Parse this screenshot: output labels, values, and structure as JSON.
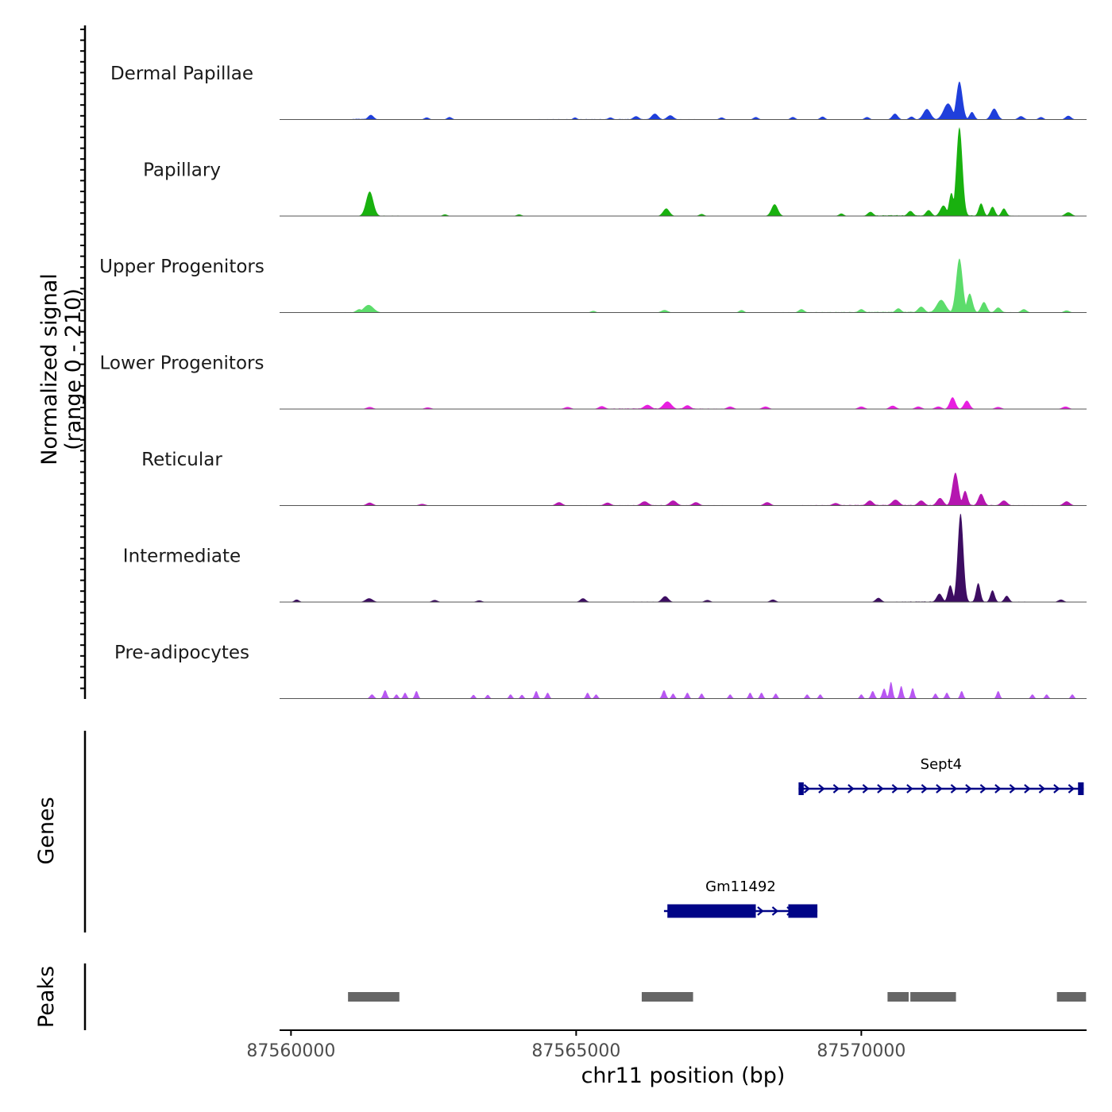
{
  "chart_data": {
    "type": "area",
    "subtype": "genome-coverage-tracks",
    "ylabel_line1": "Normalized signal",
    "ylabel_line2": "(range 0 - 210)",
    "ylim": [
      0,
      210
    ],
    "xlabel": "chr11 position (bp)",
    "xlim": [
      87559800,
      87573950
    ],
    "xticks": [
      87560000,
      87565000,
      87570000
    ],
    "xtick_labels": [
      "87560000",
      "87565000",
      "87570000"
    ],
    "tracks": [
      {
        "name": "Dermal Papillae",
        "color": "#1f3fdb",
        "background": [
          [
            87561230,
            0.1
          ],
          [
            87561430,
            0.1
          ],
          [
            87561590,
            0.03
          ],
          [
            87561845,
            0.05
          ],
          [
            87562250,
            0.02
          ],
          [
            87562720,
            0.03
          ],
          [
            87563100,
            0.04
          ],
          [
            87566100,
            0.08
          ],
          [
            87567300,
            0.05
          ],
          [
            87567600,
            0.04
          ],
          [
            87568600,
            0.05
          ],
          [
            87569000,
            0.04
          ],
          [
            87570300,
            0.03
          ]
        ],
        "peaks": [
          [
            87561400,
            11,
            70
          ],
          [
            87562380,
            5,
            60
          ],
          [
            87562780,
            6,
            60
          ],
          [
            87564980,
            5,
            50
          ],
          [
            87565600,
            5,
            60
          ],
          [
            87566050,
            8,
            70
          ],
          [
            87566380,
            14,
            80
          ],
          [
            87566650,
            10,
            80
          ],
          [
            87567550,
            5,
            60
          ],
          [
            87568150,
            6,
            60
          ],
          [
            87568800,
            6,
            60
          ],
          [
            87569320,
            7,
            60
          ],
          [
            87570100,
            6,
            60
          ],
          [
            87570590,
            14,
            70
          ],
          [
            87570880,
            7,
            60
          ],
          [
            87571150,
            25,
            90
          ],
          [
            87571520,
            38,
            110
          ],
          [
            87571720,
            90,
            75
          ],
          [
            87571940,
            18,
            60
          ],
          [
            87572330,
            26,
            80
          ],
          [
            87572800,
            8,
            70
          ],
          [
            87573150,
            6,
            60
          ],
          [
            87573630,
            9,
            70
          ]
        ]
      },
      {
        "name": "Papillary",
        "color": "#19b10f",
        "background": [
          [
            87560600,
            0.03
          ],
          [
            87561000,
            0.05
          ],
          [
            87561700,
            0.06
          ],
          [
            87564200,
            0.025
          ],
          [
            87566800,
            0.04
          ],
          [
            87568100,
            0.05
          ],
          [
            87570000,
            0.05
          ],
          [
            87570500,
            0.12
          ],
          [
            87571000,
            0.1
          ],
          [
            87572000,
            0.1
          ],
          [
            87572900,
            0.05
          ]
        ],
        "peaks": [
          [
            87561380,
            58,
            90
          ],
          [
            87562700,
            4,
            60
          ],
          [
            87564000,
            4,
            60
          ],
          [
            87566580,
            18,
            80
          ],
          [
            87567200,
            5,
            60
          ],
          [
            87568480,
            28,
            80
          ],
          [
            87569650,
            6,
            60
          ],
          [
            87570160,
            10,
            70
          ],
          [
            87570860,
            12,
            70
          ],
          [
            87571180,
            14,
            70
          ],
          [
            87571440,
            25,
            80
          ],
          [
            87571720,
            210,
            75
          ],
          [
            87571580,
            55,
            60
          ],
          [
            87572100,
            30,
            60
          ],
          [
            87572300,
            22,
            60
          ],
          [
            87572500,
            18,
            60
          ],
          [
            87573630,
            9,
            80
          ]
        ]
      },
      {
        "name": "Upper Progenitors",
        "color": "#5cdc6b",
        "background": [
          [
            87559900,
            0.03
          ],
          [
            87560300,
            0.04
          ],
          [
            87561000,
            0.06
          ],
          [
            87561700,
            0.05
          ],
          [
            87565000,
            0.03
          ],
          [
            87567000,
            0.04
          ],
          [
            87569000,
            0.06
          ],
          [
            87570500,
            0.1
          ],
          [
            87571000,
            0.12
          ],
          [
            87572000,
            0.1
          ],
          [
            87572800,
            0.05
          ],
          [
            87573600,
            0.04
          ]
        ],
        "peaks": [
          [
            87561360,
            18,
            120
          ],
          [
            87561200,
            8,
            80
          ],
          [
            87565300,
            4,
            60
          ],
          [
            87566550,
            6,
            80
          ],
          [
            87567900,
            6,
            60
          ],
          [
            87568950,
            8,
            70
          ],
          [
            87570000,
            8,
            70
          ],
          [
            87570650,
            10,
            70
          ],
          [
            87571050,
            14,
            80
          ],
          [
            87571400,
            30,
            110
          ],
          [
            87571720,
            128,
            80
          ],
          [
            87571900,
            45,
            70
          ],
          [
            87572150,
            25,
            70
          ],
          [
            87572400,
            12,
            70
          ],
          [
            87572850,
            8,
            70
          ],
          [
            87573600,
            5,
            70
          ]
        ]
      },
      {
        "name": "Lower Progenitors",
        "color": "#e81ee0",
        "background": [
          [
            87559950,
            0.03
          ],
          [
            87560600,
            0.04
          ],
          [
            87561500,
            0.04
          ],
          [
            87562500,
            0.04
          ],
          [
            87563800,
            0.03
          ],
          [
            87565000,
            0.04
          ],
          [
            87566100,
            0.1
          ],
          [
            87566600,
            0.12
          ],
          [
            87567200,
            0.07
          ],
          [
            87567800,
            0.05
          ],
          [
            87569000,
            0.04
          ],
          [
            87570600,
            0.04
          ],
          [
            87571400,
            0.05
          ],
          [
            87572500,
            0.05
          ],
          [
            87573600,
            0.04
          ]
        ],
        "peaks": [
          [
            87561380,
            5,
            80
          ],
          [
            87562400,
            4,
            80
          ],
          [
            87564850,
            5,
            80
          ],
          [
            87565450,
            7,
            80
          ],
          [
            87566250,
            10,
            90
          ],
          [
            87566600,
            18,
            100
          ],
          [
            87566950,
            9,
            80
          ],
          [
            87567700,
            6,
            80
          ],
          [
            87568320,
            6,
            80
          ],
          [
            87570000,
            6,
            80
          ],
          [
            87570550,
            8,
            80
          ],
          [
            87571000,
            6,
            80
          ],
          [
            87571350,
            6,
            80
          ],
          [
            87571600,
            28,
            70
          ],
          [
            87571850,
            20,
            70
          ],
          [
            87572400,
            5,
            80
          ],
          [
            87573580,
            6,
            80
          ]
        ]
      },
      {
        "name": "Reticular",
        "color": "#b516b0",
        "background": [
          [
            87559950,
            0.03
          ],
          [
            87560800,
            0.03
          ],
          [
            87561600,
            0.04
          ],
          [
            87562400,
            0.03
          ],
          [
            87563600,
            0.03
          ],
          [
            87564700,
            0.05
          ],
          [
            87566200,
            0.07
          ],
          [
            87566800,
            0.07
          ],
          [
            87568500,
            0.04
          ],
          [
            87570200,
            0.1
          ],
          [
            87570700,
            0.1
          ],
          [
            87571200,
            0.08
          ],
          [
            87572000,
            0.1
          ],
          [
            87572800,
            0.06
          ],
          [
            87573600,
            0.05
          ]
        ],
        "peaks": [
          [
            87561380,
            7,
            80
          ],
          [
            87562300,
            4,
            80
          ],
          [
            87564700,
            8,
            80
          ],
          [
            87565550,
            7,
            80
          ],
          [
            87566200,
            10,
            90
          ],
          [
            87566700,
            12,
            90
          ],
          [
            87567100,
            8,
            80
          ],
          [
            87568350,
            8,
            80
          ],
          [
            87569550,
            6,
            80
          ],
          [
            87570150,
            12,
            80
          ],
          [
            87570600,
            14,
            90
          ],
          [
            87571050,
            12,
            80
          ],
          [
            87571380,
            18,
            80
          ],
          [
            87571650,
            78,
            75
          ],
          [
            87571820,
            35,
            60
          ],
          [
            87572100,
            28,
            70
          ],
          [
            87572500,
            12,
            80
          ],
          [
            87573600,
            10,
            80
          ]
        ]
      },
      {
        "name": "Intermediate",
        "color": "#3d0d62",
        "background": [
          [
            87560050,
            0.03
          ],
          [
            87561000,
            0.03
          ],
          [
            87561400,
            0.05
          ],
          [
            87562300,
            0.03
          ],
          [
            87563400,
            0.03
          ],
          [
            87565000,
            0.03
          ],
          [
            87566200,
            0.06
          ],
          [
            87566900,
            0.05
          ],
          [
            87568000,
            0.03
          ],
          [
            87569200,
            0.03
          ],
          [
            87570300,
            0.04
          ],
          [
            87571000,
            0.08
          ],
          [
            87572000,
            0.08
          ],
          [
            87572600,
            0.06
          ],
          [
            87573600,
            0.04
          ]
        ],
        "peaks": [
          [
            87560100,
            6,
            60
          ],
          [
            87561370,
            9,
            90
          ],
          [
            87562520,
            5,
            70
          ],
          [
            87563300,
            4,
            70
          ],
          [
            87565120,
            9,
            70
          ],
          [
            87566560,
            14,
            80
          ],
          [
            87567300,
            5,
            70
          ],
          [
            87568450,
            6,
            70
          ],
          [
            87570300,
            10,
            70
          ],
          [
            87571370,
            20,
            70
          ],
          [
            87571560,
            40,
            60
          ],
          [
            87571740,
            210,
            70
          ],
          [
            87571700,
            40,
            50
          ],
          [
            87572050,
            45,
            55
          ],
          [
            87572300,
            28,
            55
          ],
          [
            87572550,
            15,
            60
          ],
          [
            87573500,
            6,
            70
          ]
        ]
      },
      {
        "name": "Pre-adipocytes",
        "color": "#b857f2",
        "background": [],
        "peaks": [
          [
            87561420,
            10,
            50
          ],
          [
            87561650,
            20,
            45
          ],
          [
            87561850,
            10,
            40
          ],
          [
            87562000,
            14,
            40
          ],
          [
            87562200,
            18,
            40
          ],
          [
            87563200,
            9,
            40
          ],
          [
            87563450,
            9,
            40
          ],
          [
            87563850,
            10,
            40
          ],
          [
            87564050,
            9,
            40
          ],
          [
            87564300,
            18,
            40
          ],
          [
            87564500,
            14,
            40
          ],
          [
            87565200,
            14,
            40
          ],
          [
            87565350,
            10,
            40
          ],
          [
            87566540,
            20,
            45
          ],
          [
            87566700,
            12,
            40
          ],
          [
            87566950,
            14,
            40
          ],
          [
            87567200,
            12,
            40
          ],
          [
            87567700,
            10,
            40
          ],
          [
            87568050,
            14,
            40
          ],
          [
            87568250,
            14,
            40
          ],
          [
            87568500,
            12,
            40
          ],
          [
            87569050,
            10,
            40
          ],
          [
            87569280,
            10,
            40
          ],
          [
            87570000,
            10,
            40
          ],
          [
            87570200,
            18,
            45
          ],
          [
            87570400,
            24,
            45
          ],
          [
            87570520,
            40,
            40
          ],
          [
            87570700,
            30,
            40
          ],
          [
            87570900,
            25,
            40
          ],
          [
            87571300,
            12,
            40
          ],
          [
            87571500,
            14,
            40
          ],
          [
            87571760,
            18,
            40
          ],
          [
            87572400,
            18,
            40
          ],
          [
            87573000,
            10,
            40
          ],
          [
            87573250,
            10,
            40
          ],
          [
            87573700,
            10,
            40
          ]
        ]
      }
    ],
    "genes": [
      {
        "name": "Sept4",
        "strand": "+",
        "start": 87568900,
        "end": 87573900,
        "exons": [
          [
            87568900,
            87568990
          ],
          [
            87573800,
            87573900
          ]
        ]
      },
      {
        "name": "Gm11492",
        "strand": "+",
        "start": 87566540,
        "end": 87569230,
        "exons": [
          [
            87566600,
            87568150
          ],
          [
            87568720,
            87569230
          ]
        ]
      }
    ],
    "peaks_track": [
      [
        87561000,
        87561900
      ],
      [
        87566150,
        87567050
      ],
      [
        87570460,
        87570830
      ],
      [
        87570860,
        87571660
      ],
      [
        87573430,
        87573940
      ]
    ],
    "gene_color": "#000487",
    "peak_color": "#666666",
    "track_labels": [
      "Genes",
      "Peaks"
    ]
  }
}
